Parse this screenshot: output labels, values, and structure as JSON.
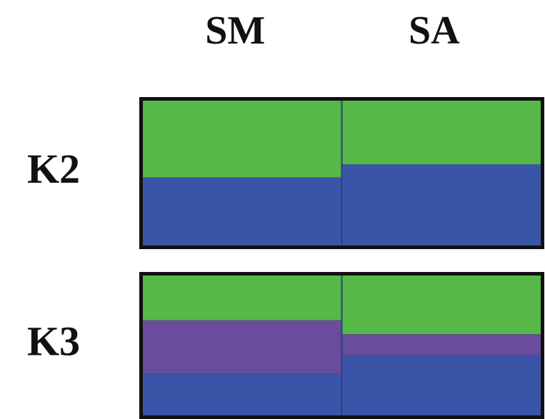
{
  "chart_data": {
    "type": "bar",
    "stacked": true,
    "categories": [
      "SM",
      "SA"
    ],
    "ylim": [
      0,
      1
    ],
    "panels": [
      {
        "name": "K2",
        "series": [
          {
            "color": "#55b849",
            "values": [
              0.53,
              0.44
            ]
          },
          {
            "color": "#3a55a8",
            "values": [
              0.47,
              0.56
            ]
          }
        ]
      },
      {
        "name": "K3",
        "series": [
          {
            "color": "#55b849",
            "values": [
              0.32,
              0.42
            ]
          },
          {
            "color": "#6a4c9c",
            "values": [
              0.38,
              0.15
            ]
          },
          {
            "color": "#3a55a8",
            "values": [
              0.3,
              0.43
            ]
          }
        ]
      }
    ]
  }
}
